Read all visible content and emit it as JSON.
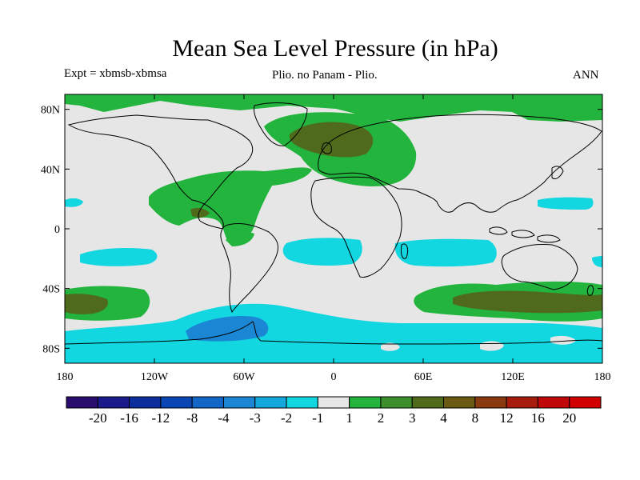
{
  "title": "Mean Sea Level Pressure (in hPa)",
  "left_label": "Expt = xbmsb-xbmsa",
  "center_label": "Plio. no Panam - Plio.",
  "right_label": "ANN",
  "lat_ticks": [
    "80N",
    "40N",
    "0",
    "40S",
    "80S"
  ],
  "lon_ticks": [
    "180",
    "120W",
    "60W",
    "0",
    "60E",
    "120E",
    "180"
  ],
  "colorbar": {
    "labels": [
      "-20",
      "-16",
      "-12",
      "-8",
      "-4",
      "-3",
      "-2",
      "-1",
      "1",
      "2",
      "3",
      "4",
      "8",
      "12",
      "16",
      "20"
    ],
    "colors": [
      "#2a0b6e",
      "#1a1a8a",
      "#0d2f9e",
      "#0a46b4",
      "#1166c8",
      "#1a86d4",
      "#12a8dc",
      "#12d6e0",
      "#e6e6e6",
      "#22b43c",
      "#3d8f2e",
      "#4e6a1a",
      "#6a5a14",
      "#8a3a10",
      "#a81c0e",
      "#c00808",
      "#d00000"
    ]
  },
  "colors": {
    "neutral": "#e6e6e6",
    "green": "#22b43c",
    "dark_green": "#4e6a1a",
    "cyan": "#12d6e0",
    "blue": "#1a86d4"
  }
}
